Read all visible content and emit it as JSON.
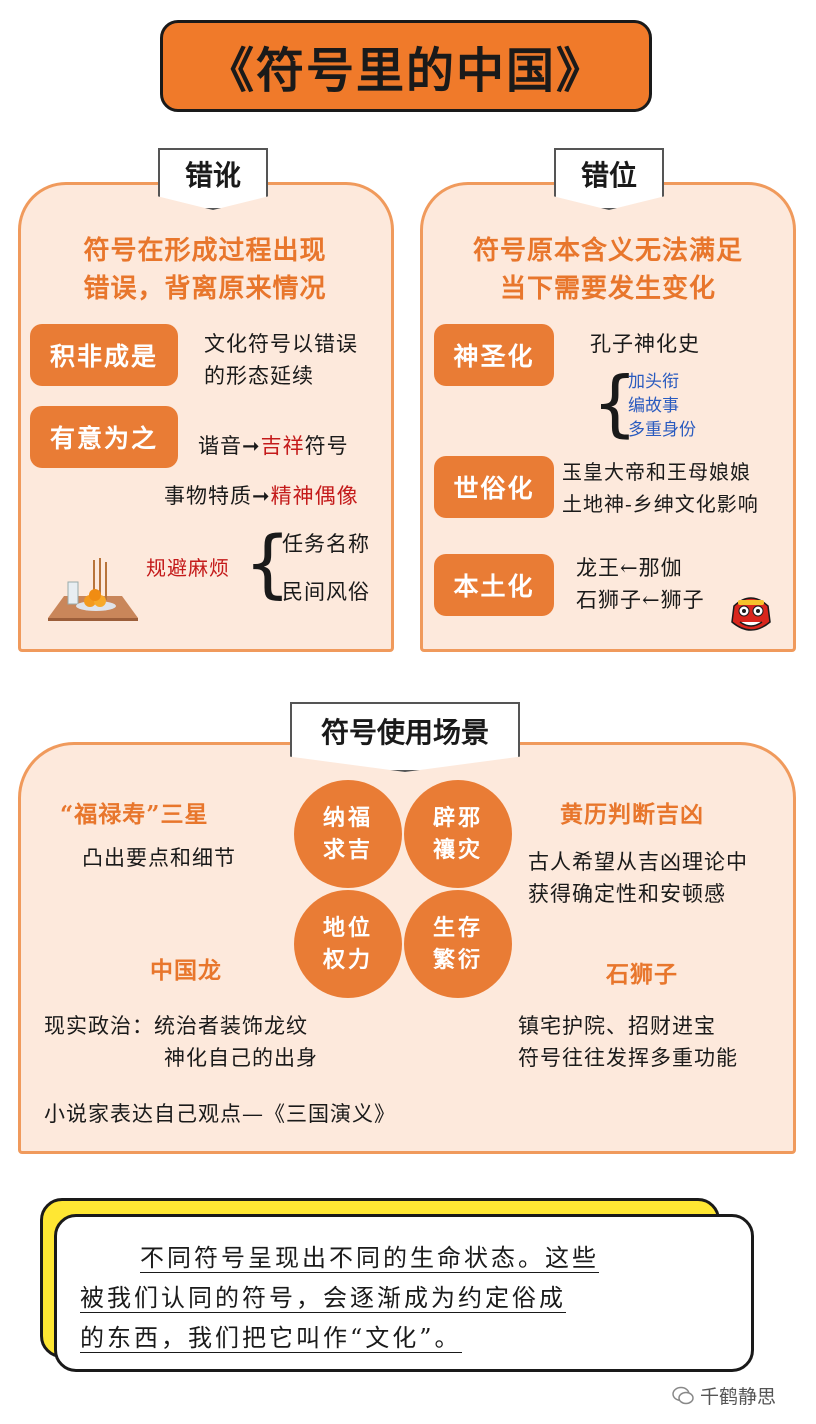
{
  "title": "《符号里的中国》",
  "left_panel": {
    "tab": "错讹",
    "subtitle_line1": "符号在形成过程出现",
    "subtitle_line2": "错误，背离原来情况",
    "item1": {
      "label": "积非成是",
      "desc_line1": "文化符号以错误",
      "desc_line2": "的形态延续"
    },
    "item2": {
      "label": "有意为之",
      "row1_prefix": "谐音",
      "row1_arrow": "➞",
      "row1_highlight": "吉祥",
      "row1_suffix": "符号",
      "row2_prefix": "事物特质",
      "row2_arrow": "➞",
      "row2_highlight": "精神偶像"
    },
    "avoid": {
      "label": "规避麻烦",
      "opt1": "任务名称",
      "opt2": "民间风俗"
    }
  },
  "right_panel": {
    "tab": "错位",
    "subtitle_line1": "符号原本含义无法满足",
    "subtitle_line2": "当下需要发生变化",
    "item1": {
      "label": "神圣化",
      "desc": "孔子神化史",
      "sub1": "加头衔",
      "sub2": "编故事",
      "sub3": "多重身份"
    },
    "item2": {
      "label": "世俗化",
      "desc_line1": "玉皇大帝和王母娘娘",
      "desc_line2": "土地神-乡绅文化影响"
    },
    "item3": {
      "label": "本土化",
      "desc_line1": "龙王←那伽",
      "desc_line2": "石狮子←狮子"
    }
  },
  "scenes": {
    "tab": "符号使用场景",
    "circles": [
      "纳福",
      "求吉",
      "辟邪",
      "禳灾",
      "地位",
      "权力",
      "生存",
      "繁衍"
    ],
    "tl": {
      "heading": "“福禄寿”三星",
      "desc": "凸出要点和细节"
    },
    "tr": {
      "heading": "黄历判断吉凶",
      "desc_line1": "古人希望从吉凶理论中",
      "desc_line2": "获得确定性和安顿感"
    },
    "bl": {
      "heading": "中国龙",
      "desc_line1": "现实政治：统治者装饰龙纹",
      "desc_line2": "神化自己的出身",
      "desc_line3": "小说家表达自己观点—《三国演义》"
    },
    "br": {
      "heading": "石狮子",
      "desc_line1": "镇宅护院、招财进宝",
      "desc_line2": "符号往往发挥多重功能"
    }
  },
  "callout": {
    "line1": "不同符号呈现出不同的生命状态。这些",
    "line2": "被我们认同的符号，会逐渐成为约定俗成",
    "line3": "的东西，我们把它叫作“文化”。"
  },
  "watermark": "千鹤静思",
  "colors": {
    "accent": "#e97c35",
    "panel_bg": "#fde9dc",
    "highlight_red": "#c41a1a",
    "callout_yellow": "#ffe733"
  }
}
